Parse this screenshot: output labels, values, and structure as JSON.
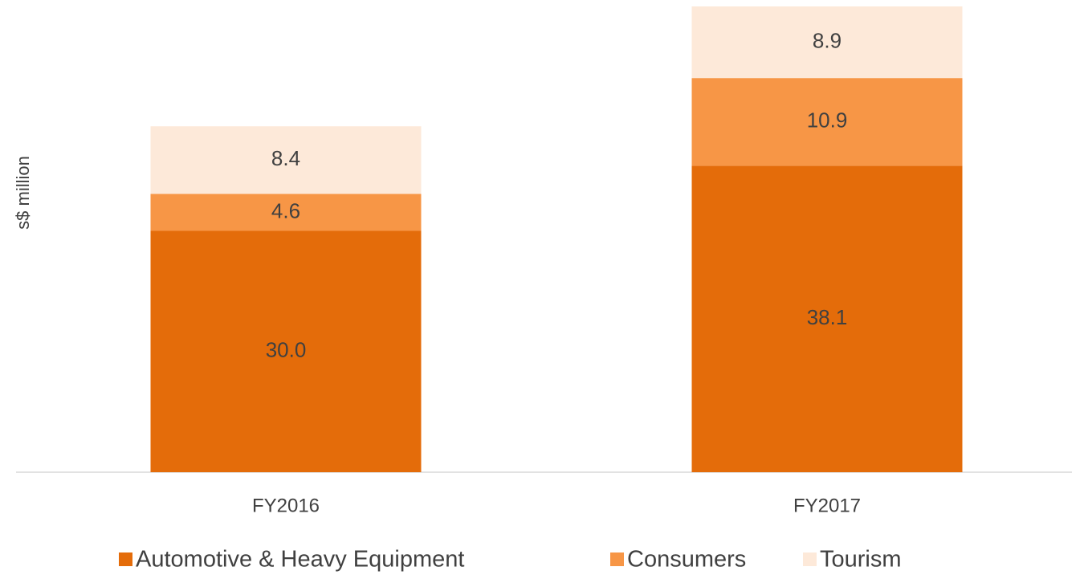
{
  "chart_data": {
    "type": "bar",
    "stacked": true,
    "y_label": "s$ million",
    "categories": [
      "FY2016",
      "FY2017"
    ],
    "series": [
      {
        "name": "Automotive & Heavy Equipment",
        "color": "#e46c0a",
        "values": [
          30.0,
          38.1
        ],
        "value_labels": [
          "30.0",
          "38.1"
        ]
      },
      {
        "name": "Consumers",
        "color": "#f79646",
        "values": [
          4.6,
          10.9
        ]
      },
      {
        "name": "Tourism",
        "color": "#fde9d9",
        "values": [
          8.4,
          8.9
        ]
      }
    ],
    "ylim": [
      0,
      58
    ],
    "legend": "bottom"
  }
}
